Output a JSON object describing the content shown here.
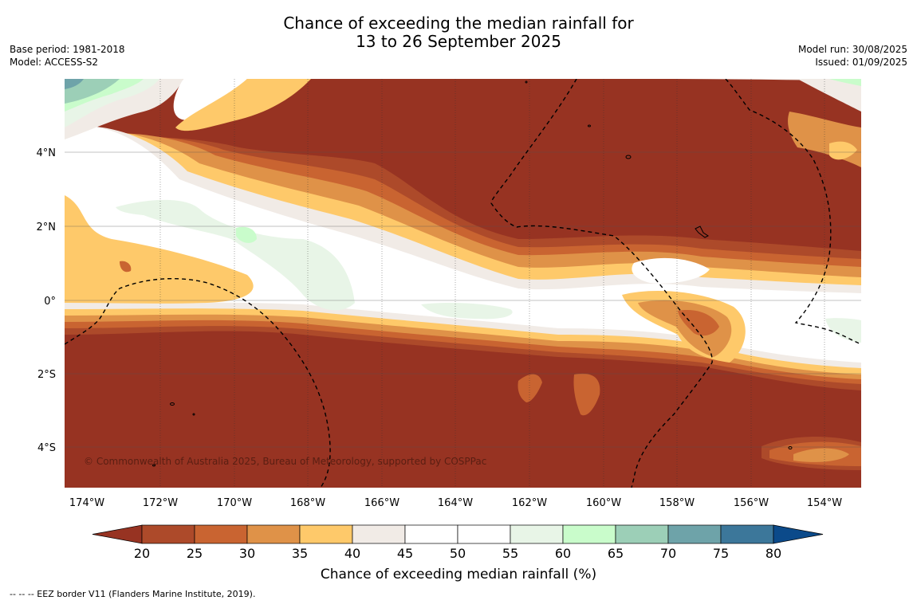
{
  "title_line1": "Chance of exceeding the median rainfall for",
  "title_line2": "13 to 26 September 2025",
  "meta_left": [
    "Base period: 1981-2018",
    "Model: ACCESS-S2"
  ],
  "meta_right": [
    "Model run: 30/08/2025",
    "Issued: 01/09/2025"
  ],
  "copyright": "© Commonwealth of Australia 2025, Bureau of Meteorology, supported by COSPPac",
  "lat_labels": [
    "4°N",
    "2°N",
    "0°",
    "2°S",
    "4°S"
  ],
  "lon_labels": [
    "174°W",
    "172°W",
    "170°W",
    "168°W",
    "166°W",
    "164°W",
    "162°W",
    "160°W",
    "158°W",
    "156°W",
    "154°W"
  ],
  "colorbar": {
    "title": "Chance of exceeding median rainfall (%)",
    "ticks": [
      "20",
      "25",
      "30",
      "35",
      "40",
      "45",
      "50",
      "55",
      "60",
      "65",
      "70",
      "75",
      "80"
    ],
    "colors": [
      "#973322",
      "#ad4a2a",
      "#c96431",
      "#df9248",
      "#fec96a",
      "#f1ebe6",
      "#ffffff",
      "#ffffff",
      "#e8f5e7",
      "#c9fccb",
      "#9ccfb7",
      "#6ea3a9",
      "#3c779a",
      "#0b4a8a"
    ]
  },
  "footer": "-- -- -- EEZ border V11 (Flanders Marine Institute, 2019).",
  "colors": {
    "c20": "#973322",
    "c25": "#ad4a2a",
    "c30": "#c96431",
    "c35": "#df9248",
    "c40": "#fec96a",
    "c45": "#f1ebe6",
    "c55": "#e8f5e7",
    "c60": "#c9fccb",
    "c65": "#9ccfb7",
    "c70": "#6ea3a9"
  }
}
